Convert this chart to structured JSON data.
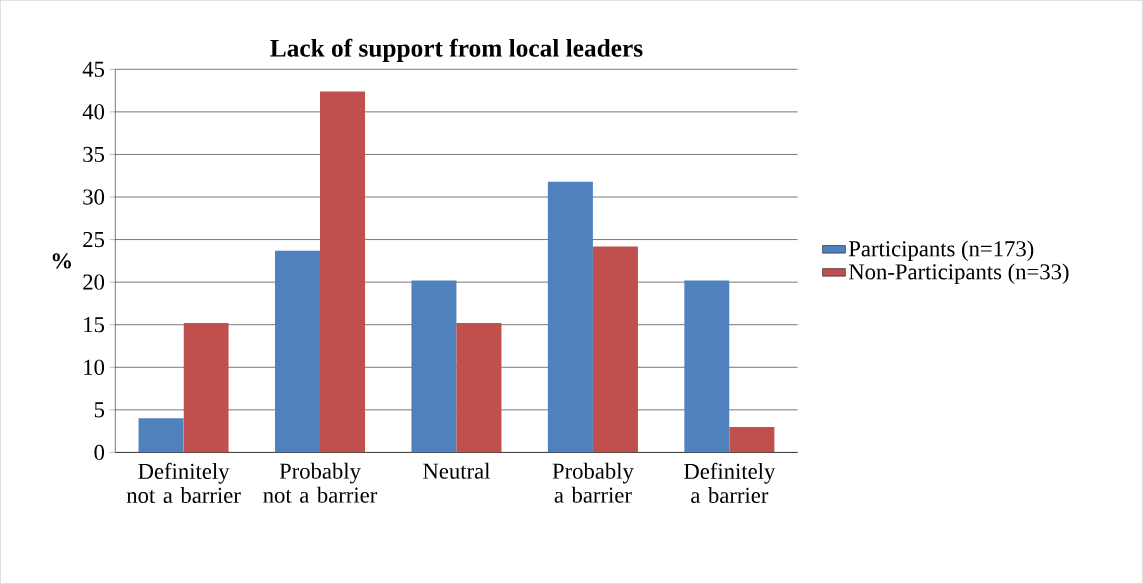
{
  "chart_data": {
    "type": "bar",
    "title": "Lack of support from local leaders",
    "ylabel": "%",
    "categories": [
      "Definitely not a barrier",
      "Probably not a barrier",
      "Neutral",
      "Probably a barrier",
      "Definitely a barrier"
    ],
    "series": [
      {
        "name": "Participants (n=173)",
        "color": "#4f81bd",
        "values": [
          4.0,
          23.7,
          20.2,
          31.8,
          20.2
        ]
      },
      {
        "name": "Non-Participants (n=33)",
        "color": "#c0504d",
        "values": [
          15.2,
          42.4,
          15.2,
          24.2,
          3.0
        ]
      }
    ],
    "ylim": [
      0,
      45
    ],
    "yticks": [
      0,
      5,
      10,
      15,
      20,
      25,
      30,
      35,
      40,
      45
    ],
    "grid": "y",
    "legend": "right"
  }
}
